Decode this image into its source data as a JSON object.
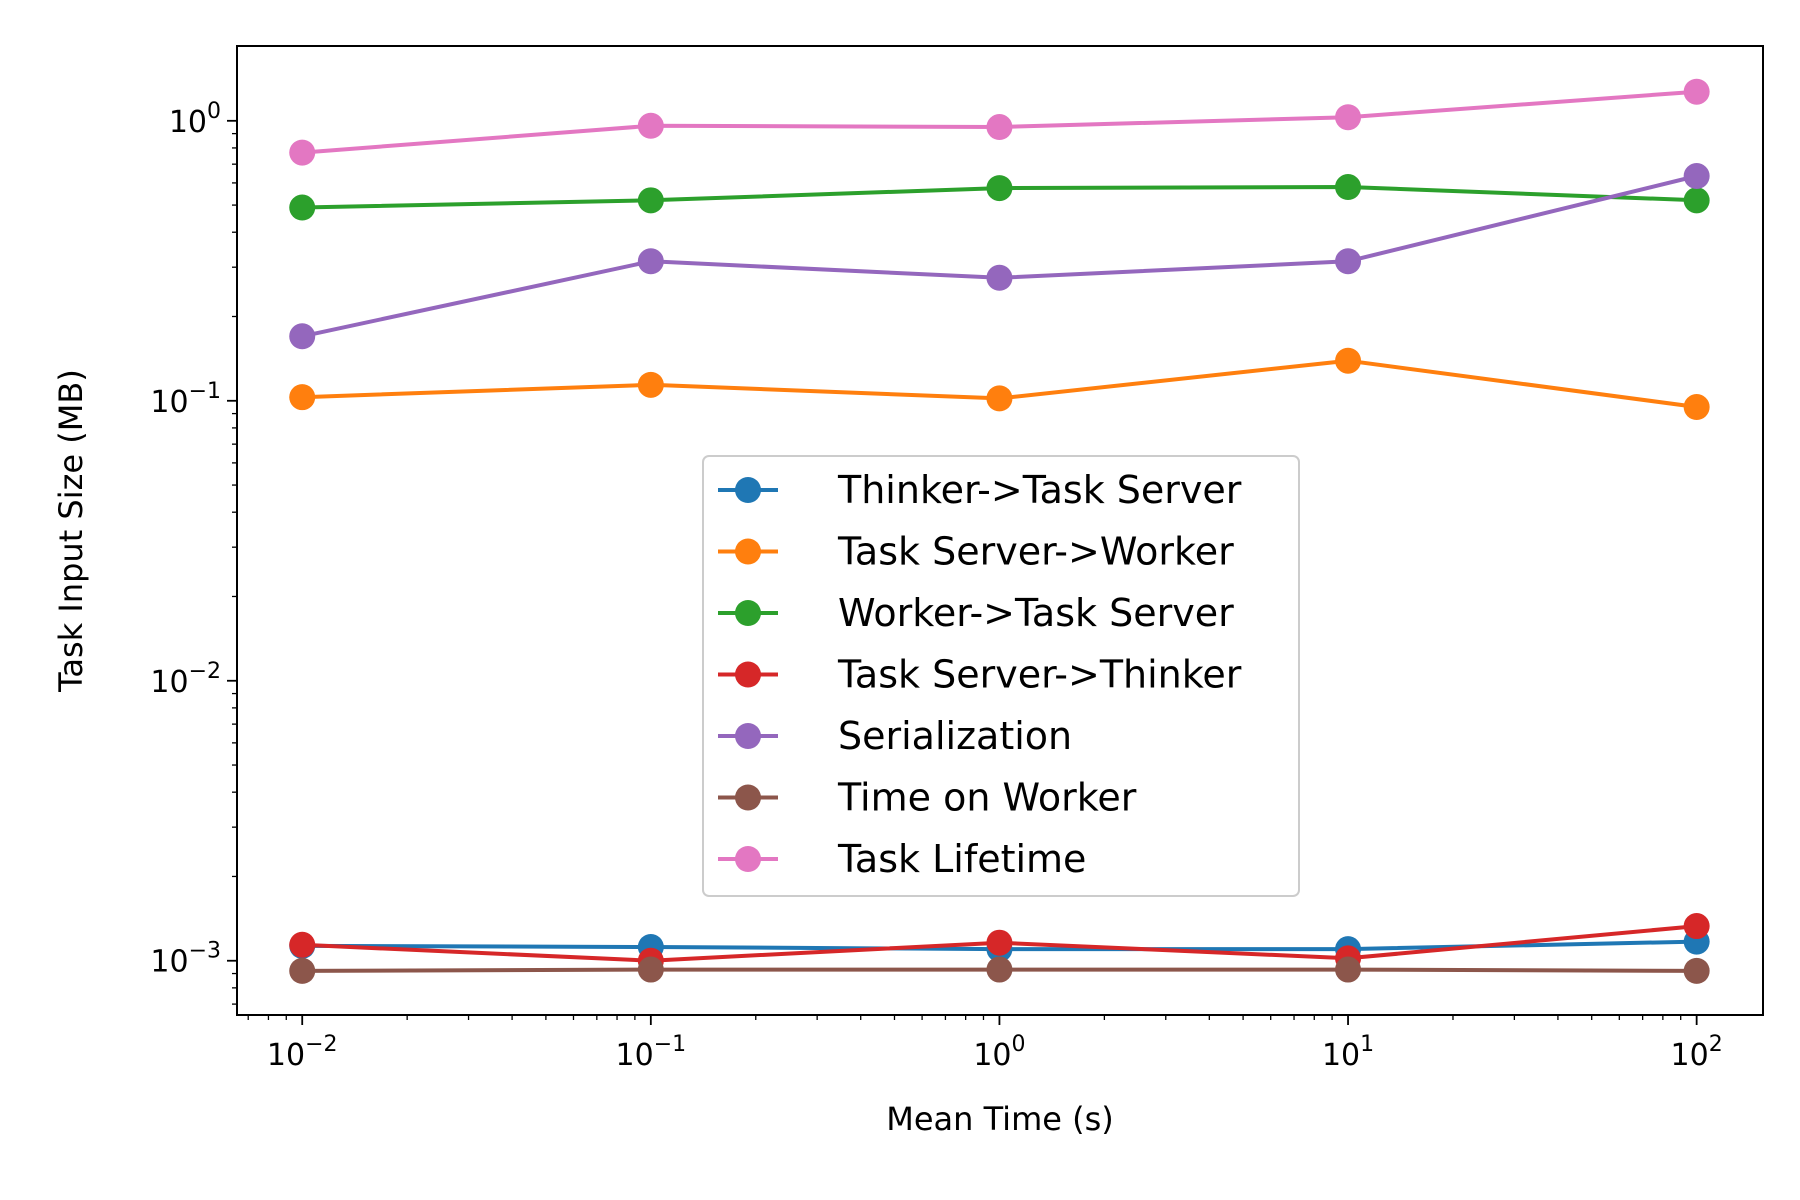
{
  "chart_data": {
    "type": "line",
    "xlabel": "Mean Time (s)",
    "ylabel": "Task Input Size (MB)",
    "x_scale": "log",
    "y_scale": "log",
    "xlim": [
      0.0065,
      155
    ],
    "ylim": [
      0.00064,
      1.85
    ],
    "grid": false,
    "legend_position": "center",
    "x": [
      0.01,
      0.1,
      1,
      10,
      100
    ],
    "x_ticks": [
      {
        "value": 0.01,
        "base": "10",
        "exp": "−2"
      },
      {
        "value": 0.1,
        "base": "10",
        "exp": "−1"
      },
      {
        "value": 1,
        "base": "10",
        "exp": "0"
      },
      {
        "value": 10,
        "base": "10",
        "exp": "1"
      },
      {
        "value": 100,
        "base": "10",
        "exp": "2"
      }
    ],
    "y_ticks": [
      {
        "value": 0.001,
        "base": "10",
        "exp": "−3"
      },
      {
        "value": 0.01,
        "base": "10",
        "exp": "−2"
      },
      {
        "value": 0.1,
        "base": "10",
        "exp": "−1"
      },
      {
        "value": 1,
        "base": "10",
        "exp": "0"
      }
    ],
    "series": [
      {
        "name": "Thinker->Task Server",
        "color": "#1f77b4",
        "values": [
          0.00113,
          0.00112,
          0.0011,
          0.0011,
          0.00117
        ]
      },
      {
        "name": "Task Server->Worker",
        "color": "#ff7f0e",
        "values": [
          0.103,
          0.114,
          0.102,
          0.139,
          0.095
        ]
      },
      {
        "name": "Worker->Task Server",
        "color": "#2ca02c",
        "values": [
          0.49,
          0.52,
          0.575,
          0.58,
          0.52
        ]
      },
      {
        "name": "Task Server->Thinker",
        "color": "#d62728",
        "values": [
          0.00114,
          0.001,
          0.00116,
          0.00102,
          0.00133
        ]
      },
      {
        "name": "Serialization",
        "color": "#9467bd",
        "values": [
          0.17,
          0.315,
          0.275,
          0.315,
          0.635
        ]
      },
      {
        "name": "Time on Worker",
        "color": "#8c564b",
        "values": [
          0.00092,
          0.00093,
          0.00093,
          0.00093,
          0.00092
        ]
      },
      {
        "name": "Task Lifetime",
        "color": "#e377c2",
        "values": [
          0.77,
          0.96,
          0.95,
          1.03,
          1.27
        ]
      }
    ]
  }
}
